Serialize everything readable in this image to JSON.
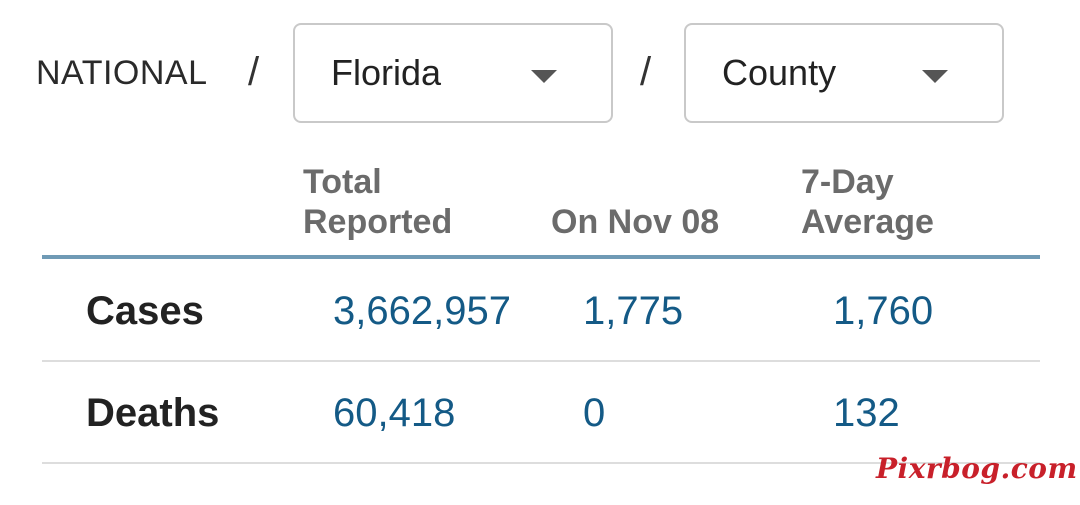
{
  "breadcrumb": {
    "national_label": "NATIONAL",
    "separator": "/",
    "state_select": {
      "value": "Florida",
      "caret": "chevron-down-icon"
    },
    "level_select": {
      "value": "County",
      "caret": "chevron-down-icon"
    }
  },
  "table": {
    "headers": {
      "total_line1": "Total",
      "total_line2": "Reported",
      "on_date": "On Nov 08",
      "avg_line1": "7-Day",
      "avg_line2": "Average"
    },
    "rows": [
      {
        "label": "Cases",
        "total": "3,662,957",
        "on_date": "1,775",
        "avg": "1,760"
      },
      {
        "label": "Deaths",
        "total": "60,418",
        "on_date": "0",
        "avg": "132"
      }
    ]
  },
  "colors": {
    "value_text": "#145a86",
    "header_rule": "#6f9ab5",
    "watermark": "#c8202a"
  },
  "watermark": "Pixrbog.com"
}
